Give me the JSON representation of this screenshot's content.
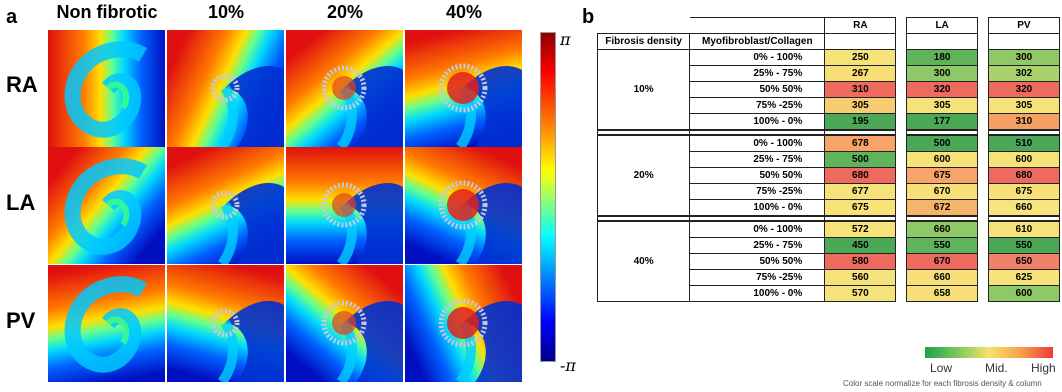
{
  "panel_a": {
    "label": "a",
    "columns": [
      "Non fibrotic",
      "10%",
      "20%",
      "40%"
    ],
    "rows": [
      "RA",
      "LA",
      "PV"
    ],
    "colorbar": {
      "top": "π",
      "bottom": "-π"
    }
  },
  "panel_b": {
    "label": "b",
    "header": {
      "col1": "Fibrosis density",
      "col2": "Myofibroblast/Collagen",
      "ra": "RA",
      "la": "LA",
      "pv": "PV"
    },
    "groups": [
      {
        "density": "10%",
        "rows": [
          {
            "ratio": "0% - 100%",
            "ra": "250",
            "la": "180",
            "pv": "300"
          },
          {
            "ratio": "25% - 75%",
            "ra": "267",
            "la": "300",
            "pv": "302"
          },
          {
            "ratio": "50% 50%",
            "ra": "310",
            "la": "320",
            "pv": "320"
          },
          {
            "ratio": "75% -25%",
            "ra": "305",
            "la": "305",
            "pv": "305"
          },
          {
            "ratio": "100% - 0%",
            "ra": "195",
            "la": "177",
            "pv": "310"
          }
        ]
      },
      {
        "density": "20%",
        "rows": [
          {
            "ratio": "0% - 100%",
            "ra": "678",
            "la": "500",
            "pv": "510"
          },
          {
            "ratio": "25% - 75%",
            "ra": "500",
            "la": "600",
            "pv": "600"
          },
          {
            "ratio": "50% 50%",
            "ra": "680",
            "la": "675",
            "pv": "680"
          },
          {
            "ratio": "75% -25%",
            "ra": "677",
            "la": "670",
            "pv": "675"
          },
          {
            "ratio": "100% - 0%",
            "ra": "675",
            "la": "672",
            "pv": "660"
          }
        ]
      },
      {
        "density": "40%",
        "rows": [
          {
            "ratio": "0% - 100%",
            "ra": "572",
            "la": "660",
            "pv": "610"
          },
          {
            "ratio": "25% - 75%",
            "ra": "450",
            "la": "550",
            "pv": "550"
          },
          {
            "ratio": "50% 50%",
            "ra": "580",
            "la": "670",
            "pv": "650"
          },
          {
            "ratio": "75% -25%",
            "ra": "560",
            "la": "660",
            "pv": "625"
          },
          {
            "ratio": "100% - 0%",
            "ra": "570",
            "la": "658",
            "pv": "600"
          }
        ]
      }
    ],
    "cell_colors": [
      [
        "#f5e37a",
        "#5fb35a",
        "#8fc866"
      ],
      [
        "#f7de76",
        "#8fc866",
        "#a9d16c"
      ],
      [
        "#ef6a5e",
        "#ef6a5e",
        "#ef6a5e"
      ],
      [
        "#f6cc72",
        "#f6e27a",
        "#f5e37a"
      ],
      [
        "#4aa856",
        "#4aa856",
        "#f4a063"
      ],
      [
        "#f7a36a",
        "#4aa856",
        "#4aa856"
      ],
      [
        "#5fb35a",
        "#f5e37a",
        "#f5e37a"
      ],
      [
        "#ef6a5e",
        "#f7a36a",
        "#ef6a5e"
      ],
      [
        "#f6e27a",
        "#f7e07a",
        "#f7e07a"
      ],
      [
        "#f7e37a",
        "#f6b46a",
        "#f8e47c"
      ],
      [
        "#f5e37a",
        "#8fc866",
        "#f5e37a"
      ],
      [
        "#4aa856",
        "#5fb35a",
        "#4aa856"
      ],
      [
        "#ef6a5e",
        "#ef6a5e",
        "#f0806a"
      ],
      [
        "#f6e27a",
        "#f7e07a",
        "#f7e37a"
      ],
      [
        "#f6e27a",
        "#f7e07a",
        "#8fc866"
      ]
    ],
    "legend": {
      "low": "Low",
      "mid": "Mid.",
      "high": "High",
      "note": "Color scale normalize for each fibrosis density & column"
    }
  }
}
